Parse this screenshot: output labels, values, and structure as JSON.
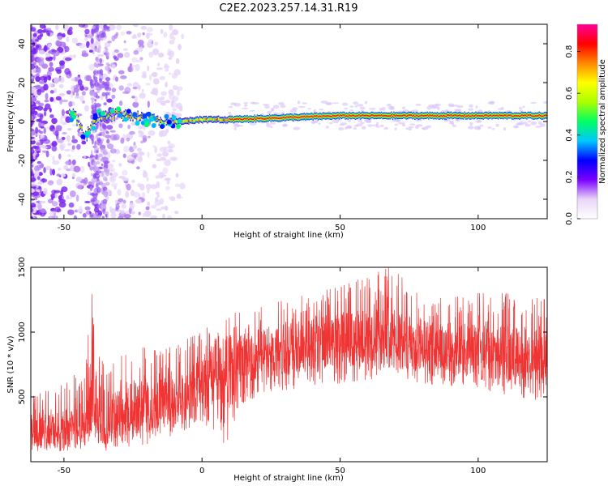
{
  "figure_title": "C2E2.2023.257.14.31.R19",
  "chart_data": [
    {
      "type": "heatmap",
      "title": "",
      "xlabel": "Height of straight line (km)",
      "ylabel": "Frequency (Hz)",
      "xlim": [
        -62,
        125
      ],
      "ylim": [
        -50,
        50
      ],
      "x_ticks": [
        -50,
        0,
        50,
        100
      ],
      "y_ticks": [
        -40,
        -20,
        0,
        20,
        40
      ],
      "colorbar": {
        "label": "Normalized spectral amplitude",
        "range": [
          0,
          0.93
        ],
        "ticks": [
          "0.0",
          "0.2",
          "0.4",
          "0.6",
          "0.8"
        ],
        "colormap": [
          "#ffffff",
          "#e9d6f7",
          "#7a00ff",
          "#0000ff",
          "#00c8ff",
          "#00ff64",
          "#aaff00",
          "#ffff00",
          "#ff8800",
          "#ff0000",
          "#ff0099"
        ]
      },
      "dominant_signal": {
        "description_points": [
          {
            "x": -47,
            "freq": 6
          },
          {
            "x": -42,
            "freq": -8
          },
          {
            "x": -38,
            "freq": 2
          },
          {
            "x": -30,
            "freq": 4
          },
          {
            "x": -20,
            "freq": 1
          },
          {
            "x": -10,
            "freq": 0
          },
          {
            "x": 0,
            "freq": 1
          },
          {
            "x": 10,
            "freq": 1
          },
          {
            "x": 50,
            "freq": 3
          },
          {
            "x": 100,
            "freq": 3
          },
          {
            "x": 125,
            "freq": 3
          }
        ],
        "peak_amplitude_x_range": [
          10,
          125
        ]
      }
    },
    {
      "type": "line",
      "title": "",
      "xlabel": "Height of straight line (km)",
      "ylabel": "SNR (10 * v/v)",
      "xlim": [
        -62,
        125
      ],
      "ylim": [
        0,
        1500
      ],
      "x_ticks": [
        -50,
        0,
        50,
        100
      ],
      "y_ticks": [
        500,
        1000,
        1500
      ],
      "series": [
        {
          "color": "#f03333",
          "envelope": [
            {
              "x": -62,
              "low": 80,
              "mid": 230,
              "high": 500
            },
            {
              "x": -50,
              "low": 80,
              "mid": 250,
              "high": 600
            },
            {
              "x": -42,
              "low": 100,
              "mid": 300,
              "high": 750
            },
            {
              "x": -40,
              "low": 150,
              "mid": 500,
              "high": 1330
            },
            {
              "x": -35,
              "low": 80,
              "mid": 300,
              "high": 700
            },
            {
              "x": -25,
              "low": 120,
              "mid": 400,
              "high": 900
            },
            {
              "x": -15,
              "low": 150,
              "mid": 450,
              "high": 850
            },
            {
              "x": -5,
              "low": 250,
              "mid": 550,
              "high": 950
            },
            {
              "x": 0,
              "low": 300,
              "mid": 600,
              "high": 1000
            },
            {
              "x": 8,
              "low": 100,
              "mid": 700,
              "high": 1150
            },
            {
              "x": 15,
              "low": 450,
              "mid": 800,
              "high": 1150
            },
            {
              "x": 30,
              "low": 550,
              "mid": 870,
              "high": 1250
            },
            {
              "x": 50,
              "low": 600,
              "mid": 950,
              "high": 1350
            },
            {
              "x": 68,
              "low": 650,
              "mid": 950,
              "high": 1500
            },
            {
              "x": 80,
              "low": 600,
              "mid": 900,
              "high": 1300
            },
            {
              "x": 100,
              "low": 550,
              "mid": 850,
              "high": 1300
            },
            {
              "x": 110,
              "low": 500,
              "mid": 840,
              "high": 1300
            },
            {
              "x": 125,
              "low": 450,
              "mid": 800,
              "high": 1250
            }
          ]
        }
      ]
    }
  ]
}
